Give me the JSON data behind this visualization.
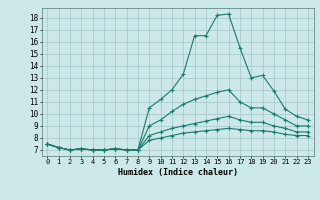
{
  "title": "",
  "xlabel": "Humidex (Indice chaleur)",
  "bg_color": "#cce8e8",
  "grid_color": "#aacccc",
  "line_color": "#1a7a6e",
  "xlim": [
    -0.5,
    23.5
  ],
  "ylim": [
    6.5,
    18.8
  ],
  "xticks": [
    0,
    1,
    2,
    3,
    4,
    5,
    6,
    7,
    8,
    9,
    10,
    11,
    12,
    13,
    14,
    15,
    16,
    17,
    18,
    19,
    20,
    21,
    22,
    23
  ],
  "yticks": [
    7,
    8,
    9,
    10,
    11,
    12,
    13,
    14,
    15,
    16,
    17,
    18
  ],
  "lines": [
    {
      "x": [
        0,
        1,
        2,
        3,
        4,
        5,
        6,
        7,
        8,
        9,
        10,
        11,
        12,
        13,
        14,
        15,
        16,
        17,
        18,
        19,
        20,
        21,
        22,
        23
      ],
      "y": [
        7.5,
        7.2,
        7.0,
        7.1,
        7.0,
        7.0,
        7.1,
        7.0,
        7.0,
        10.5,
        11.2,
        12.0,
        13.3,
        16.5,
        16.5,
        18.2,
        18.3,
        15.5,
        13.0,
        13.2,
        11.9,
        10.4,
        9.8,
        9.5
      ]
    },
    {
      "x": [
        0,
        1,
        2,
        3,
        4,
        5,
        6,
        7,
        8,
        9,
        10,
        11,
        12,
        13,
        14,
        15,
        16,
        17,
        18,
        19,
        20,
        21,
        22,
        23
      ],
      "y": [
        7.5,
        7.2,
        7.0,
        7.1,
        7.0,
        7.0,
        7.1,
        7.0,
        7.0,
        9.0,
        9.5,
        10.2,
        10.8,
        11.2,
        11.5,
        11.8,
        12.0,
        11.0,
        10.5,
        10.5,
        10.0,
        9.5,
        9.0,
        9.0
      ]
    },
    {
      "x": [
        0,
        1,
        2,
        3,
        4,
        5,
        6,
        7,
        8,
        9,
        10,
        11,
        12,
        13,
        14,
        15,
        16,
        17,
        18,
        19,
        20,
        21,
        22,
        23
      ],
      "y": [
        7.5,
        7.2,
        7.0,
        7.1,
        7.0,
        7.0,
        7.1,
        7.0,
        7.0,
        8.2,
        8.5,
        8.8,
        9.0,
        9.2,
        9.4,
        9.6,
        9.8,
        9.5,
        9.3,
        9.3,
        9.0,
        8.8,
        8.5,
        8.5
      ]
    },
    {
      "x": [
        0,
        1,
        2,
        3,
        4,
        5,
        6,
        7,
        8,
        9,
        10,
        11,
        12,
        13,
        14,
        15,
        16,
        17,
        18,
        19,
        20,
        21,
        22,
        23
      ],
      "y": [
        7.5,
        7.2,
        7.0,
        7.1,
        7.0,
        7.0,
        7.1,
        7.0,
        7.0,
        7.8,
        8.0,
        8.2,
        8.4,
        8.5,
        8.6,
        8.7,
        8.8,
        8.7,
        8.6,
        8.6,
        8.5,
        8.3,
        8.2,
        8.2
      ]
    }
  ]
}
